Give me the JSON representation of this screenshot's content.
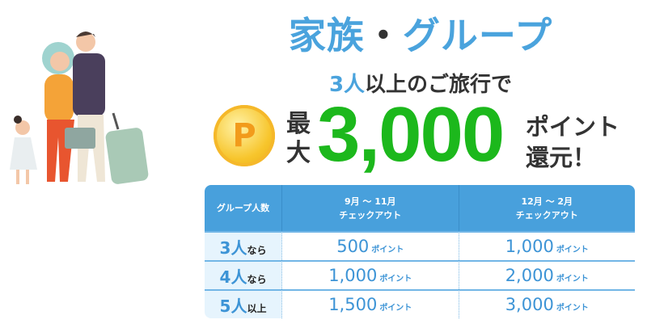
{
  "headline": {
    "part1": "家族",
    "separator": "・",
    "part2": "グループ"
  },
  "subheadline": {
    "highlight": "3人",
    "rest": "以上のご旅行で"
  },
  "promo": {
    "coin_letter": "P",
    "max_label_1": "最",
    "max_label_2": "大",
    "amount": "3,000",
    "unit_line1": "ポイント",
    "unit_line2": "還元！"
  },
  "colors": {
    "blue": "#4aa3dd",
    "green": "#1cb81c",
    "coin": "#f7c52c"
  },
  "table": {
    "headers": [
      "グループ人数",
      "9月 ～ 11月\nチェックアウト",
      "12月 ～ 2月\nチェックアウト"
    ],
    "header_lines": [
      [
        "グループ人数"
      ],
      [
        "9月 ～ 11月",
        "チェックアウト"
      ],
      [
        "12月 ～ 2月",
        "チェックアウト"
      ]
    ],
    "unit": "ポイント",
    "rows": [
      {
        "num": "3人",
        "suffix": "なら",
        "autumn": "500",
        "winter": "1,000"
      },
      {
        "num": "4人",
        "suffix": "なら",
        "autumn": "1,000",
        "winter": "2,000"
      },
      {
        "num": "5人",
        "suffix": "以上",
        "autumn": "1,500",
        "winter": "3,000"
      }
    ]
  }
}
